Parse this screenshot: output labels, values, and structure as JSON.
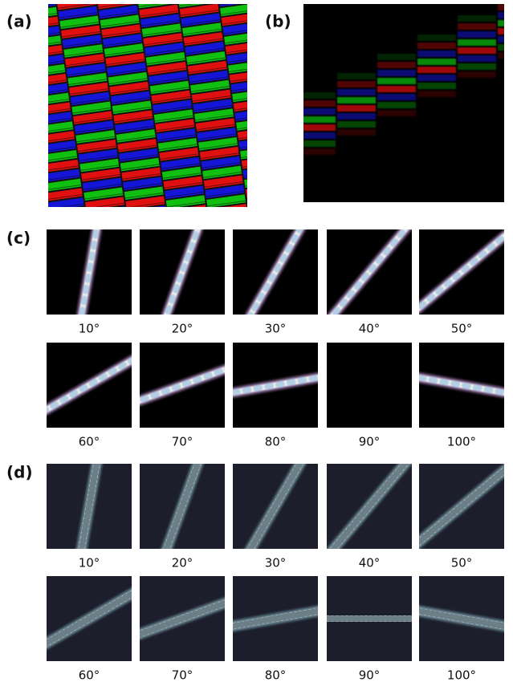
{
  "panels": {
    "a": {
      "label": "(a)"
    },
    "b": {
      "label": "(b)"
    },
    "c": {
      "label": "(c)",
      "tiles": [
        {
          "caption": "10°"
        },
        {
          "caption": "20°"
        },
        {
          "caption": "30°"
        },
        {
          "caption": "40°"
        },
        {
          "caption": "50°"
        },
        {
          "caption": "60°"
        },
        {
          "caption": "70°"
        },
        {
          "caption": "80°"
        },
        {
          "caption": "90°"
        },
        {
          "caption": "100°"
        }
      ]
    },
    "d": {
      "label": "(d)",
      "tiles": [
        {
          "caption": "10°"
        },
        {
          "caption": "20°"
        },
        {
          "caption": "30°"
        },
        {
          "caption": "40°"
        },
        {
          "caption": "50°"
        },
        {
          "caption": "60°"
        },
        {
          "caption": "70°"
        },
        {
          "caption": "80°"
        },
        {
          "caption": "90°"
        },
        {
          "caption": "100°"
        }
      ]
    }
  }
}
